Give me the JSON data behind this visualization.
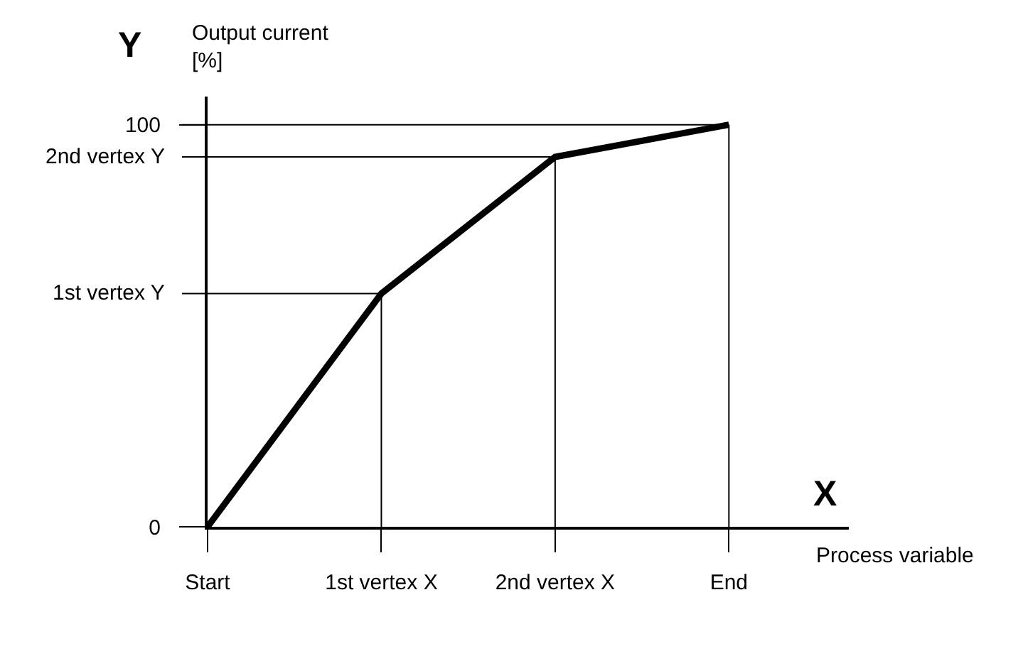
{
  "chart_data": {
    "type": "line",
    "categories": [
      "Start",
      "1st vertex X",
      "2nd vertex X",
      "End"
    ],
    "values": [
      0,
      58,
      92,
      100
    ],
    "color": "#000000",
    "line_style": "solid",
    "xlabel": "Process variable",
    "ylabel": "Output current\n[%]",
    "annotations": [
      "Y",
      "X"
    ],
    "ylim": [
      0,
      107
    ],
    "yticks": [
      0,
      100
    ],
    "ref_lines": [
      {
        "axis": "y",
        "value": 58,
        "label": "1st vertex Y",
        "color": "#000000"
      },
      {
        "axis": "y",
        "value": 92,
        "label": "2nd vertex Y",
        "color": "#000000"
      },
      {
        "axis": "y",
        "value": 100,
        "color": "#000000"
      },
      {
        "axis": "x",
        "value": "1st vertex X",
        "color": "#000000"
      },
      {
        "axis": "x",
        "value": "2nd vertex X",
        "color": "#000000"
      },
      {
        "axis": "x",
        "value": "End",
        "color": "#000000"
      }
    ]
  }
}
